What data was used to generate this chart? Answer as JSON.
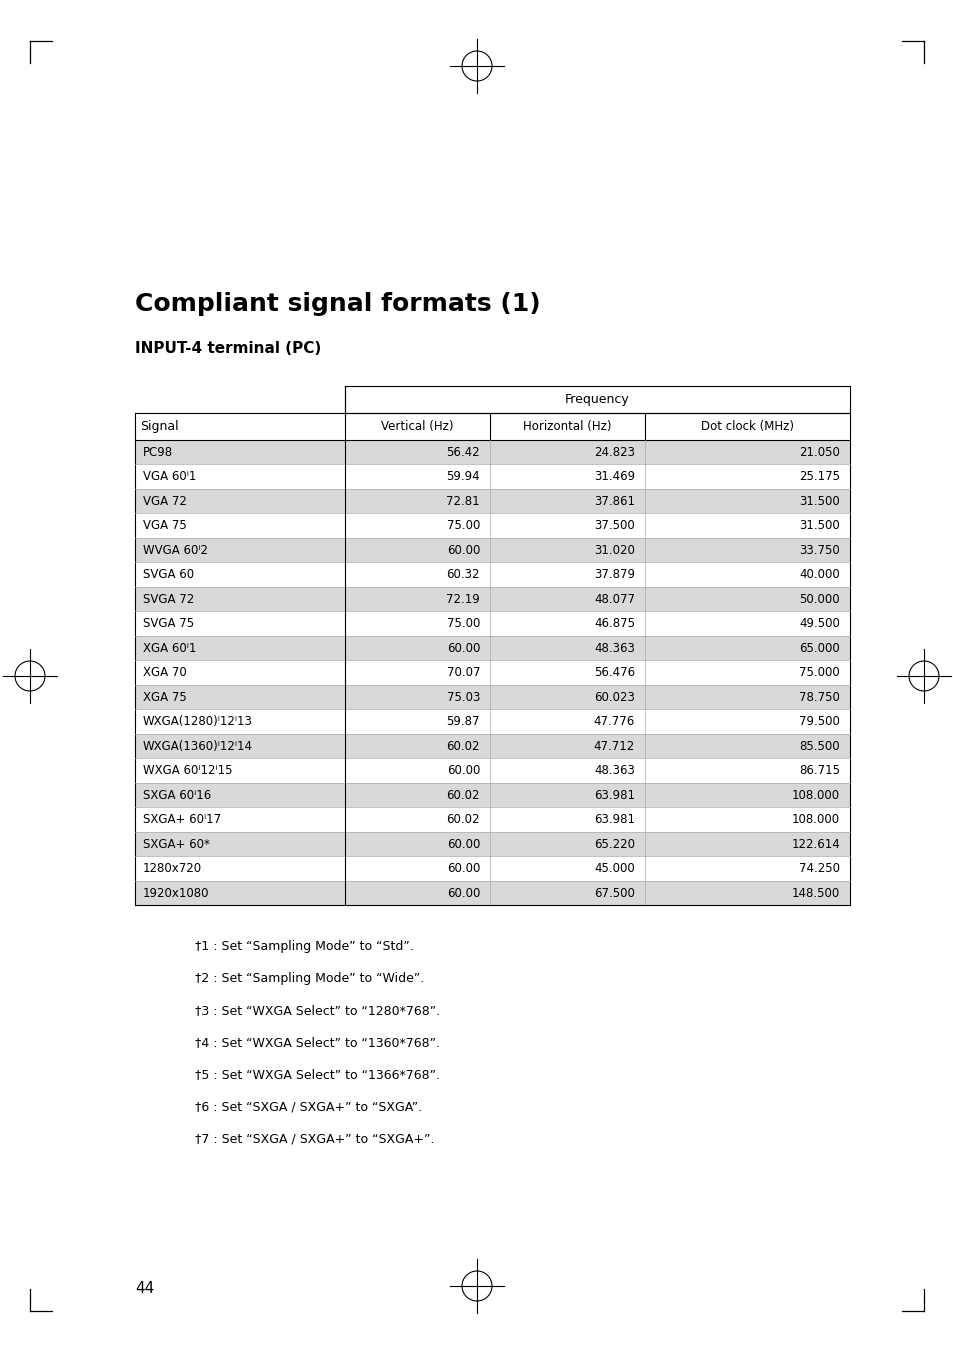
{
  "title": "Compliant signal formats (1)",
  "subtitle": "INPUT-4 terminal (PC)",
  "page_number": "44",
  "table_header_top": "Frequency",
  "table_col_headers": [
    "Signal",
    "Vertical (Hz)",
    "Horizontal (Hz)",
    "Dot clock (MHz)"
  ],
  "rows": [
    {
      "signal": "PC98",
      "vert": "56.42",
      "horiz": "24.823",
      "dot": "21.050",
      "shaded": true
    },
    {
      "signal": "VGA 60ⁱ1",
      "vert": "59.94",
      "horiz": "31.469",
      "dot": "25.175",
      "shaded": false
    },
    {
      "signal": "VGA 72",
      "vert": "72.81",
      "horiz": "37.861",
      "dot": "31.500",
      "shaded": true
    },
    {
      "signal": "VGA 75",
      "vert": "75.00",
      "horiz": "37.500",
      "dot": "31.500",
      "shaded": false
    },
    {
      "signal": "WVGA 60ⁱ2",
      "vert": "60.00",
      "horiz": "31.020",
      "dot": "33.750",
      "shaded": true
    },
    {
      "signal": "SVGA 60",
      "vert": "60.32",
      "horiz": "37.879",
      "dot": "40.000",
      "shaded": false
    },
    {
      "signal": "SVGA 72",
      "vert": "72.19",
      "horiz": "48.077",
      "dot": "50.000",
      "shaded": true
    },
    {
      "signal": "SVGA 75",
      "vert": "75.00",
      "horiz": "46.875",
      "dot": "49.500",
      "shaded": false
    },
    {
      "signal": "XGA 60ⁱ1",
      "vert": "60.00",
      "horiz": "48.363",
      "dot": "65.000",
      "shaded": true
    },
    {
      "signal": "XGA 70",
      "vert": "70.07",
      "horiz": "56.476",
      "dot": "75.000",
      "shaded": false
    },
    {
      "signal": "XGA 75",
      "vert": "75.03",
      "horiz": "60.023",
      "dot": "78.750",
      "shaded": true
    },
    {
      "signal": "WXGA(1280)ⁱ12ⁱ13",
      "vert": "59.87",
      "horiz": "47.776",
      "dot": "79.500",
      "shaded": false
    },
    {
      "signal": "WXGA(1360)ⁱ12ⁱ14",
      "vert": "60.02",
      "horiz": "47.712",
      "dot": "85.500",
      "shaded": true
    },
    {
      "signal": "WXGA 60ⁱ12ⁱ15",
      "vert": "60.00",
      "horiz": "48.363",
      "dot": "86.715",
      "shaded": false
    },
    {
      "signal": "SXGA 60ⁱ16",
      "vert": "60.02",
      "horiz": "63.981",
      "dot": "108.000",
      "shaded": true
    },
    {
      "signal": "SXGA+ 60ⁱ17",
      "vert": "60.02",
      "horiz": "63.981",
      "dot": "108.000",
      "shaded": false
    },
    {
      "signal": "SXGA+ 60*",
      "vert": "60.00",
      "horiz": "65.220",
      "dot": "122.614",
      "shaded": true
    },
    {
      "signal": "1280x720",
      "vert": "60.00",
      "horiz": "45.000",
      "dot": "74.250",
      "shaded": false
    },
    {
      "signal": "1920x1080",
      "vert": "60.00",
      "horiz": "67.500",
      "dot": "148.500",
      "shaded": true
    }
  ],
  "footnotes": [
    "†1 : Set “Sampling Mode” to “Std”.",
    "†2 : Set “Sampling Mode” to “Wide”.",
    "†3 : Set “WXGA Select” to “1280*768”.",
    "†4 : Set “WXGA Select” to “1360*768”.",
    "†5 : Set “WXGA Select” to “1366*768”.",
    "†6 : Set “SXGA / SXGA+” to “SXGA”.",
    "†7 : Set “SXGA / SXGA+” to “SXGA+”."
  ],
  "shaded_color": "#d9d9d9",
  "white_color": "#ffffff",
  "bg_color": "#ffffff",
  "text_color": "#000000",
  "header_line_color": "#000000"
}
